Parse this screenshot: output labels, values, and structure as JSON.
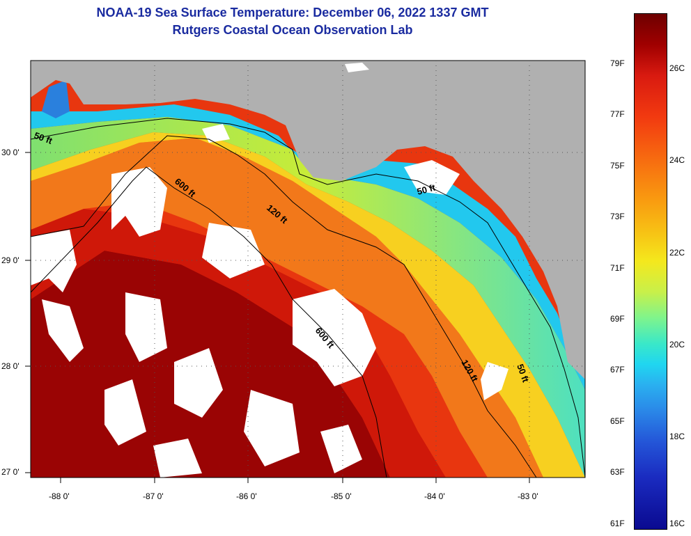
{
  "title": {
    "line1": "NOAA-19 Sea Surface Temperature:  December 06, 2022 1337 GMT",
    "line2": "Rutgers Coastal Ocean Observation Lab"
  },
  "map": {
    "lat_labels": [
      "30 0'",
      "29 0'",
      "28 0'",
      "27 0'"
    ],
    "lon_labels": [
      "-88 0'",
      "-87 0'",
      "-86 0'",
      "-85 0'",
      "-84 0'",
      "-83 0'"
    ],
    "contour_labels": [
      "50 ft",
      "600 ft",
      "120 ft",
      "600 ft",
      "50 ft",
      "120 ft",
      "50 ft"
    ]
  },
  "colorbar": {
    "fahrenheit": [
      "79F",
      "77F",
      "75F",
      "73F",
      "71F",
      "69F",
      "67F",
      "65F",
      "63F",
      "61F"
    ],
    "celsius": [
      "26C",
      "24C",
      "22C",
      "20C",
      "18C",
      "16C"
    ],
    "fahrenheit_values": [
      79,
      77,
      75,
      73,
      71,
      69,
      67,
      65,
      63,
      61
    ],
    "celsius_values": [
      26,
      24,
      22,
      20,
      18,
      16
    ],
    "range_c": [
      16,
      27.2
    ]
  },
  "colors": {
    "title": "#1a2ba0",
    "land": "#b0b0b0",
    "cloud": "#ffffff"
  }
}
